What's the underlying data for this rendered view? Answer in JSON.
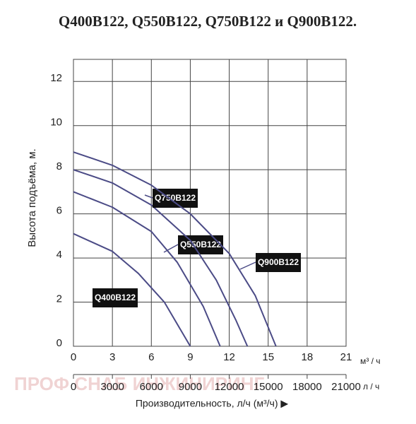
{
  "chart_data": {
    "type": "line",
    "title": "Q400B122, Q550B122, Q750B122 и Q900B122.",
    "y_label": "Высота подъёма, м.",
    "x_label": "Производительность, л/ч (м³/ч) ▶",
    "x_unit": "м³ / ч",
    "x2_unit": "л / ч",
    "watermark": "ПРОФ СНАБ ИНЖИНИРИНГ",
    "xlim": [
      0,
      21
    ],
    "xticks": [
      0,
      3,
      6,
      9,
      12,
      15,
      18,
      21
    ],
    "x2lim": [
      0,
      21000
    ],
    "x2ticks": [
      0,
      3000,
      6000,
      9000,
      12000,
      15000,
      18000,
      21000
    ],
    "ylim": [
      0,
      13
    ],
    "yticks": [
      0,
      2,
      4,
      6,
      8,
      10,
      12
    ],
    "grid": true,
    "series": [
      {
        "name": "Q400B122",
        "color": "#4b4b86",
        "x": [
          0,
          3,
          5,
          7,
          8.4,
          9
        ],
        "values": [
          5.1,
          4.3,
          3.3,
          2.0,
          0.6,
          0
        ]
      },
      {
        "name": "Q550B122",
        "color": "#4b4b86",
        "x": [
          0,
          3,
          6,
          8,
          10,
          11.3
        ],
        "values": [
          7.0,
          6.3,
          5.2,
          3.8,
          1.8,
          0
        ]
      },
      {
        "name": "Q750B122",
        "color": "#4b4b86",
        "x": [
          0,
          3,
          6,
          9,
          11,
          12.5,
          13.4
        ],
        "values": [
          8.0,
          7.4,
          6.4,
          4.8,
          3.0,
          1.2,
          0
        ]
      },
      {
        "name": "Q900B122",
        "color": "#4b4b86",
        "x": [
          0,
          3,
          6,
          9,
          12,
          14,
          15.6
        ],
        "values": [
          8.8,
          8.2,
          7.3,
          6.0,
          4.2,
          2.3,
          0
        ]
      }
    ]
  }
}
